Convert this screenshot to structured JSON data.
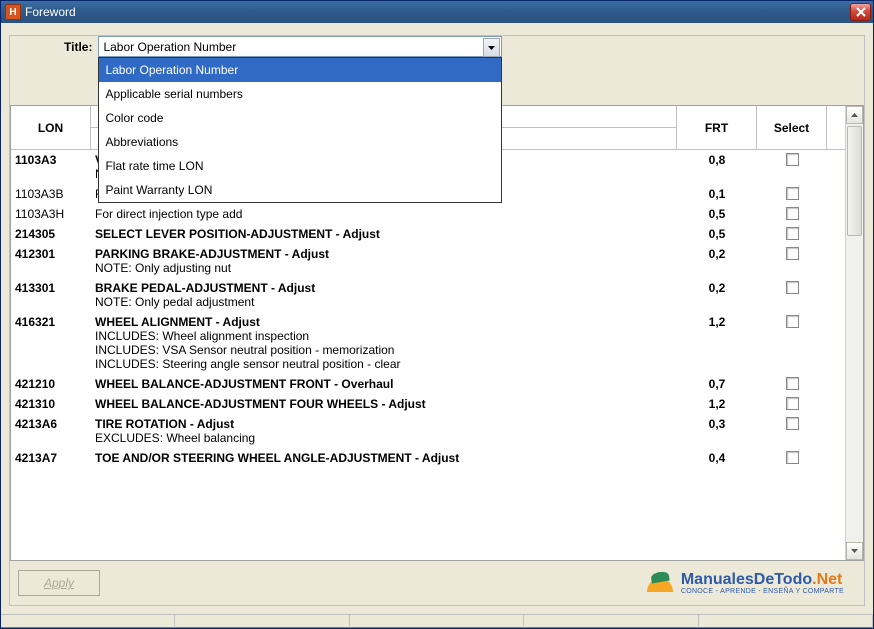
{
  "window": {
    "title": "Foreword"
  },
  "titleRow": {
    "label": "Title:",
    "selected": "Labor Operation Number"
  },
  "dropdown": {
    "items": [
      {
        "label": "Labor Operation Number",
        "selected": true
      },
      {
        "label": "Applicable serial numbers",
        "selected": false
      },
      {
        "label": "Color code",
        "selected": false
      },
      {
        "label": "Abbreviations",
        "selected": false
      },
      {
        "label": "Flat rate time LON",
        "selected": false
      },
      {
        "label": "Paint Warranty LON",
        "selected": false
      }
    ]
  },
  "table": {
    "headers": {
      "lon": "LON",
      "frt": "FRT",
      "select": "Select"
    },
    "rows": [
      {
        "lon": "1103A3",
        "desc": "V",
        "notes": [
          "N"
        ],
        "frt": "0,8",
        "selectable": true,
        "bold": true
      },
      {
        "lon": "1103A3B",
        "desc": "F",
        "frt": "0,1",
        "selectable": true,
        "bold": false
      },
      {
        "lon": "1103A3H",
        "desc": "For direct injection type add",
        "frt": "0,5",
        "selectable": true,
        "bold": false
      },
      {
        "lon": "214305",
        "desc": "SELECT LEVER POSITION-ADJUSTMENT - Adjust",
        "frt": "0,5",
        "selectable": true,
        "bold": true
      },
      {
        "lon": "412301",
        "desc": "PARKING BRAKE-ADJUSTMENT - Adjust",
        "notes": [
          "NOTE: Only adjusting nut"
        ],
        "frt": "0,2",
        "selectable": true,
        "bold": true
      },
      {
        "lon": "413301",
        "desc": "BRAKE PEDAL-ADJUSTMENT - Adjust",
        "notes": [
          "NOTE: Only pedal adjustment"
        ],
        "frt": "0,2",
        "selectable": true,
        "bold": true
      },
      {
        "lon": "416321",
        "desc": "WHEEL ALIGNMENT - Adjust",
        "notes": [
          "INCLUDES: Wheel alignment inspection",
          "INCLUDES: VSA Sensor neutral position - memorization",
          "INCLUDES: Steering angle sensor neutral position - clear"
        ],
        "frt": "1,2",
        "selectable": true,
        "bold": true
      },
      {
        "lon": "421210",
        "desc": "WHEEL BALANCE-ADJUSTMENT FRONT - Overhaul",
        "frt": "0,7",
        "selectable": true,
        "bold": true
      },
      {
        "lon": "421310",
        "desc": "WHEEL BALANCE-ADJUSTMENT FOUR WHEELS - Adjust",
        "frt": "1,2",
        "selectable": true,
        "bold": true
      },
      {
        "lon": "4213A6",
        "desc": "TIRE ROTATION - Adjust",
        "notes": [
          "EXCLUDES: Wheel balancing"
        ],
        "frt": "0,3",
        "selectable": true,
        "bold": true
      },
      {
        "lon": "4213A7",
        "desc": "TOE AND/OR STEERING WHEEL ANGLE-ADJUSTMENT - Adjust",
        "frt": "0,4",
        "selectable": true,
        "bold": true
      }
    ]
  },
  "footer": {
    "apply": "Apply"
  },
  "logo": {
    "main1": "ManualesDeTodo",
    "main2": ".Net",
    "sub": "CONOCE - APRENDE - ENSEÑA Y COMPARTE"
  },
  "colors": {
    "highlight": "#316ac5",
    "border": "#7f9db9"
  }
}
